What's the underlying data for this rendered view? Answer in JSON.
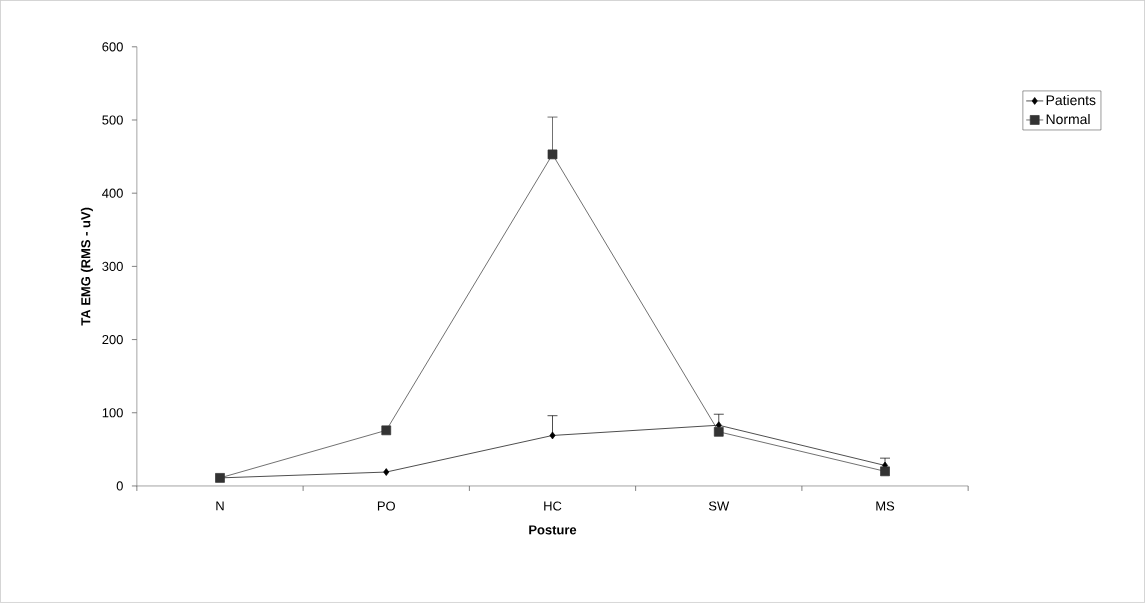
{
  "chart_data": {
    "type": "line",
    "xlabel": "Posture",
    "ylabel": "TA EMG (RMS - uV)",
    "categories": [
      "N",
      "PO",
      "HC",
      "SW",
      "MS"
    ],
    "series": [
      {
        "name": "Patients",
        "color": "#000000",
        "marker": "diamond",
        "values": [
          11,
          19,
          69,
          83,
          28
        ],
        "errors": [
          null,
          null,
          [
            69,
            96
          ],
          [
            83,
            98
          ],
          [
            28,
            38
          ]
        ]
      },
      {
        "name": "Normal",
        "color": "#333333",
        "marker": "square",
        "values": [
          11,
          76,
          453,
          74,
          20
        ],
        "errors": [
          null,
          null,
          [
            453,
            504
          ],
          null,
          null
        ]
      }
    ],
    "ylim": [
      0,
      600
    ],
    "yticks": [
      0,
      100,
      200,
      300,
      400,
      500,
      600
    ],
    "grid": false,
    "legend": "top right"
  }
}
